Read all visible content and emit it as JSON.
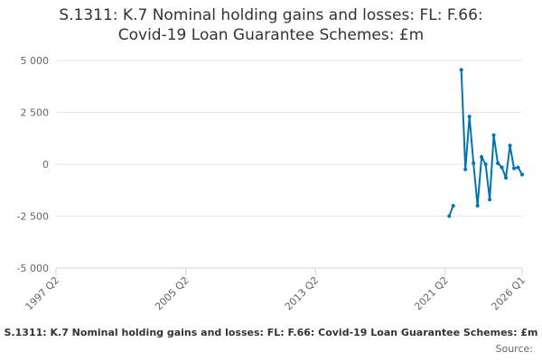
{
  "chart_data": {
    "type": "line",
    "title": "S.1311: K.7 Nominal holding gains and losses: FL: F.66: Covid-19 Loan Guarantee Schemes: £m",
    "source": "Source:",
    "categories": [
      "1997 Q2",
      null,
      null,
      null,
      null,
      null,
      null,
      null,
      null,
      null,
      null,
      null,
      null,
      null,
      null,
      null,
      null,
      null,
      null,
      null,
      null,
      null,
      null,
      null,
      null,
      null,
      null,
      null,
      null,
      null,
      null,
      null,
      "2005 Q2",
      null,
      null,
      null,
      null,
      null,
      null,
      null,
      null,
      null,
      null,
      null,
      null,
      null,
      null,
      null,
      null,
      null,
      null,
      null,
      null,
      null,
      null,
      null,
      null,
      null,
      null,
      null,
      null,
      null,
      null,
      null,
      "2013 Q2",
      null,
      null,
      null,
      null,
      null,
      null,
      null,
      null,
      null,
      null,
      null,
      null,
      null,
      null,
      null,
      null,
      null,
      null,
      null,
      null,
      null,
      null,
      null,
      null,
      null,
      null,
      null,
      null,
      null,
      null,
      null,
      "2021 Q2",
      null,
      null,
      null,
      null,
      null,
      null,
      null,
      null,
      null,
      null,
      null,
      null,
      null,
      null,
      null,
      null,
      null,
      null,
      "2026 Q1"
    ],
    "series": [
      {
        "name": "S.1311: K.7 Nominal holding gains and losses: FL: F.66: Covid-19 Loan Guarantee Schemes: £m",
        "color": "#0075b0",
        "values": [
          null,
          null,
          null,
          null,
          null,
          null,
          null,
          null,
          null,
          null,
          null,
          null,
          null,
          null,
          null,
          null,
          null,
          null,
          null,
          null,
          null,
          null,
          null,
          null,
          null,
          null,
          null,
          null,
          null,
          null,
          null,
          null,
          null,
          null,
          null,
          null,
          null,
          null,
          null,
          null,
          null,
          null,
          null,
          null,
          null,
          null,
          null,
          null,
          null,
          null,
          null,
          null,
          null,
          null,
          null,
          null,
          null,
          null,
          null,
          null,
          null,
          null,
          null,
          null,
          null,
          null,
          null,
          null,
          null,
          null,
          null,
          null,
          null,
          null,
          null,
          null,
          null,
          null,
          null,
          null,
          null,
          null,
          null,
          null,
          null,
          null,
          null,
          null,
          null,
          null,
          null,
          null,
          null,
          null,
          null,
          null,
          null,
          -2500,
          -2000,
          null,
          4550,
          -250,
          2300,
          50,
          -2000,
          350,
          0,
          -1700,
          1400,
          50,
          -150,
          -650,
          900,
          -200,
          -150,
          -500
        ]
      }
    ],
    "ylim": [
      -5000,
      5000
    ],
    "yticks": [
      {
        "value": -5000,
        "label": "-5 000"
      },
      {
        "value": -2500,
        "label": "-2 500"
      },
      0,
      {
        "value": 2500,
        "label": "2 500"
      },
      {
        "value": 5000,
        "label": "5 000"
      }
    ],
    "grid": true
  }
}
